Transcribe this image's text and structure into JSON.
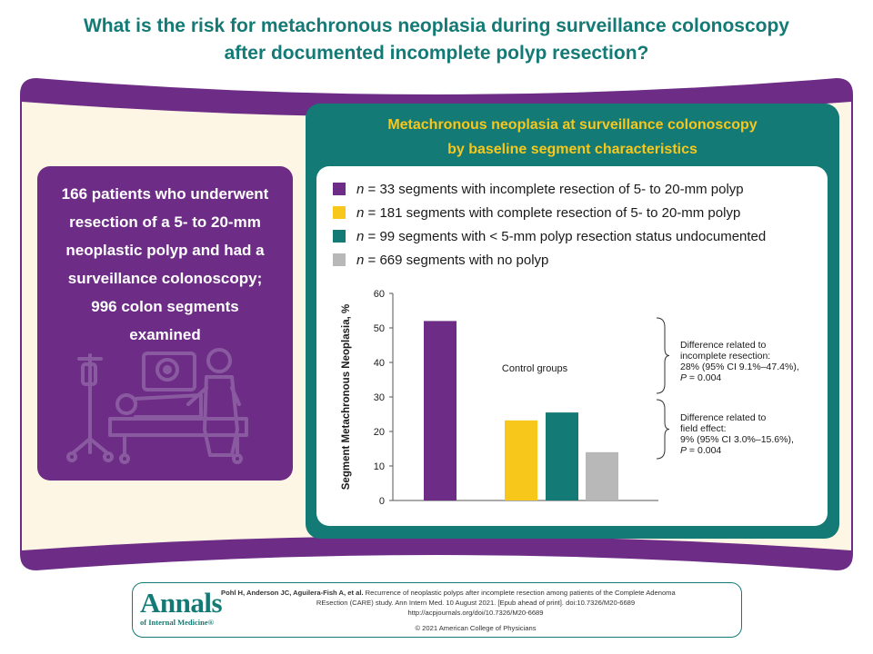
{
  "title": {
    "line1": "What is the risk for metachronous neoplasia during surveillance colonoscopy",
    "line2": "after documented incomplete polyp resection?"
  },
  "colors": {
    "teal": "#137a75",
    "purple": "#6d2c85",
    "yellow": "#f7c71c",
    "gray": "#b8b8b8",
    "cream": "#fdf6e4"
  },
  "left_card": {
    "lines": [
      "166 patients who underwent",
      "resection of a 5- to 20-mm",
      "neoplastic polyp and had a",
      "surveillance colonoscopy;",
      "996 colon segments",
      "examined"
    ],
    "illustration_icon": "colonoscopy-patient-illustration"
  },
  "panel": {
    "title_line1": "Metachronous neoplasia at surveillance colonoscopy",
    "title_line2": "by baseline segment characteristics"
  },
  "legend": [
    {
      "n": "n",
      "text": " = 33 segments with incomplete resection of 5- to 20-mm polyp",
      "color": "#6d2c85"
    },
    {
      "n": "n",
      "text": " = 181 segments with complete resection of 5- to 20-mm polyp",
      "color": "#f7c71c"
    },
    {
      "n": "n",
      "text": " = 99 segments with < 5-mm polyp resection status undocumented",
      "color": "#137a75"
    },
    {
      "n": "n",
      "text": " = 669 segments with no polyp",
      "color": "#b8b8b8"
    }
  ],
  "chart_data": {
    "type": "bar",
    "title": "",
    "xlabel": "",
    "ylabel": "Segment Metachronous Neoplasia, %",
    "ylim": [
      0,
      60
    ],
    "yticks": [
      0,
      10,
      20,
      30,
      40,
      50,
      60
    ],
    "grid": false,
    "series": [
      {
        "name": "n = 33 segments with incomplete resection of 5- to 20-mm polyp",
        "value": 52,
        "color": "#6d2c85"
      },
      {
        "name": "n = 181 segments with complete resection of 5- to 20-mm polyp",
        "value": 23.2,
        "color": "#f7c71c"
      },
      {
        "name": "n = 99 segments with < 5-mm polyp resection status undocumented",
        "value": 25.5,
        "color": "#137a75"
      },
      {
        "name": "n = 669 segments with no polyp",
        "value": 14,
        "color": "#b8b8b8"
      }
    ],
    "annotations": {
      "control_groups": "Control groups",
      "incomplete": [
        "Difference related to",
        "incomplete resection:",
        "28% (95% CI 9.1%–47.4%),",
        "P = 0.004"
      ],
      "field": [
        "Difference related to",
        "field effect:",
        "9% (95% CI 3.0%–15.6%),",
        "P = 0.004"
      ]
    }
  },
  "footer": {
    "logo_word": "Annals",
    "logo_sub": "of Internal Medicine",
    "logo_mark": "®",
    "authors": "Pohl H, Anderson JC, Aguilera-Fish A, et al.",
    "cite_rest": " Recurrence of neoplastic polyps after incomplete resection among patients of the Complete Adenoma",
    "cite_line2": "REsection (CARE) study. Ann Intern Med. 10 August 2021. [Epub ahead of print]. doi:10.7326/M20-6689",
    "url": "http://acpjournals.org/doi/10.7326/M20-6689",
    "copyright": "© 2021 American College of Physicians"
  }
}
